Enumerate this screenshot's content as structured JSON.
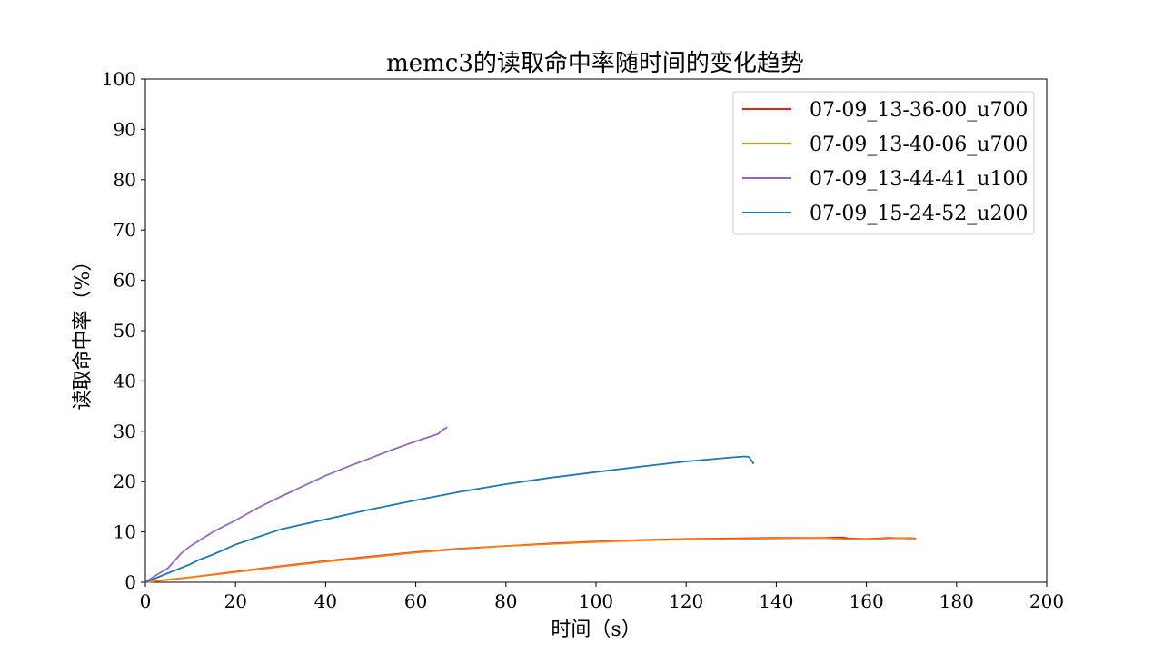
{
  "chart_data": {
    "type": "line",
    "title": "memc3的读取命中率随时间的变化趋势",
    "xlabel": "时间（s）",
    "ylabel": "读取命中率（%）",
    "xlim": [
      0,
      200
    ],
    "ylim": [
      0,
      100
    ],
    "xticks": [
      0,
      20,
      40,
      60,
      80,
      100,
      120,
      140,
      160,
      180,
      200
    ],
    "yticks": [
      0,
      10,
      20,
      30,
      40,
      50,
      60,
      70,
      80,
      90,
      100
    ],
    "grid": false,
    "legend_position": "top-right",
    "series": [
      {
        "name": "07-09_13-36-00_u700",
        "color": "#d62728",
        "x": [
          0,
          5,
          10,
          20,
          30,
          40,
          50,
          60,
          70,
          80,
          90,
          100,
          110,
          120,
          130,
          140,
          150,
          155,
          156,
          160,
          165,
          170,
          171
        ],
        "y": [
          0,
          0.5,
          1.0,
          2.1,
          3.2,
          4.2,
          5.1,
          6.0,
          6.7,
          7.2,
          7.7,
          8.1,
          8.4,
          8.6,
          8.7,
          8.8,
          8.8,
          8.9,
          8.7,
          8.6,
          8.8,
          8.7,
          8.7
        ]
      },
      {
        "name": "07-09_13-40-06_u700",
        "color": "#ff7f0e",
        "x": [
          0,
          5,
          10,
          20,
          30,
          40,
          50,
          60,
          70,
          80,
          90,
          100,
          110,
          120,
          130,
          140,
          150,
          155,
          160,
          165,
          170,
          171
        ],
        "y": [
          0,
          0.5,
          1.0,
          2.0,
          3.1,
          4.1,
          5.0,
          5.9,
          6.6,
          7.2,
          7.6,
          8.0,
          8.3,
          8.5,
          8.6,
          8.7,
          8.8,
          8.6,
          8.5,
          8.7,
          8.8,
          8.6
        ]
      },
      {
        "name": "07-09_13-44-41_u100",
        "color": "#9467bd",
        "x": [
          0,
          2,
          5,
          8,
          10,
          15,
          20,
          25,
          30,
          35,
          40,
          45,
          50,
          55,
          60,
          65,
          66,
          67
        ],
        "y": [
          0,
          1.2,
          2.8,
          5.8,
          7.2,
          10.0,
          12.3,
          14.8,
          17.0,
          19.1,
          21.2,
          23.0,
          24.7,
          26.4,
          28.0,
          29.5,
          30.3,
          30.8
        ]
      },
      {
        "name": "07-09_15-24-52_u200",
        "color": "#1f77b4",
        "x": [
          0,
          5,
          10,
          12,
          15,
          20,
          25,
          30,
          40,
          50,
          60,
          70,
          80,
          90,
          100,
          110,
          120,
          130,
          133,
          134,
          135
        ],
        "y": [
          0,
          1.8,
          3.6,
          4.5,
          5.5,
          7.5,
          9.0,
          10.5,
          12.5,
          14.5,
          16.3,
          18.0,
          19.5,
          20.8,
          21.9,
          23.0,
          24.0,
          24.8,
          25.0,
          24.9,
          23.5
        ]
      }
    ]
  }
}
